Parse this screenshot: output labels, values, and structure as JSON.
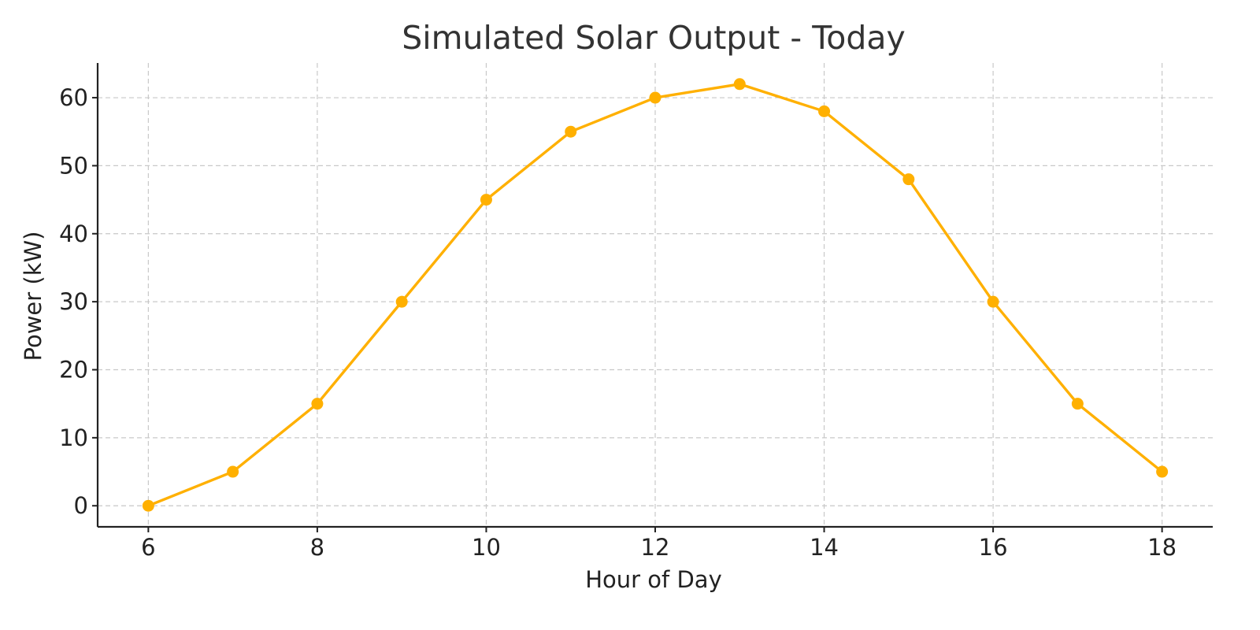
{
  "chart_data": {
    "type": "line",
    "title": "Simulated Solar Output - Today",
    "xlabel": "Hour of Day",
    "ylabel": "Power (kW)",
    "x": [
      6,
      7,
      8,
      9,
      10,
      11,
      12,
      13,
      14,
      15,
      16,
      17,
      18
    ],
    "series": [
      {
        "values": [
          0,
          5,
          15,
          30,
          45,
          55,
          60,
          62,
          58,
          48,
          30,
          15,
          5
        ],
        "color": "#FFB000",
        "marker": "circle"
      }
    ],
    "xticks": [
      6,
      8,
      10,
      12,
      14,
      16,
      18
    ],
    "yticks": [
      0,
      10,
      20,
      30,
      40,
      50,
      60
    ],
    "xlim": [
      5.4,
      18.6
    ],
    "ylim": [
      -3.1,
      65.1
    ],
    "grid": true,
    "legend": "none"
  }
}
